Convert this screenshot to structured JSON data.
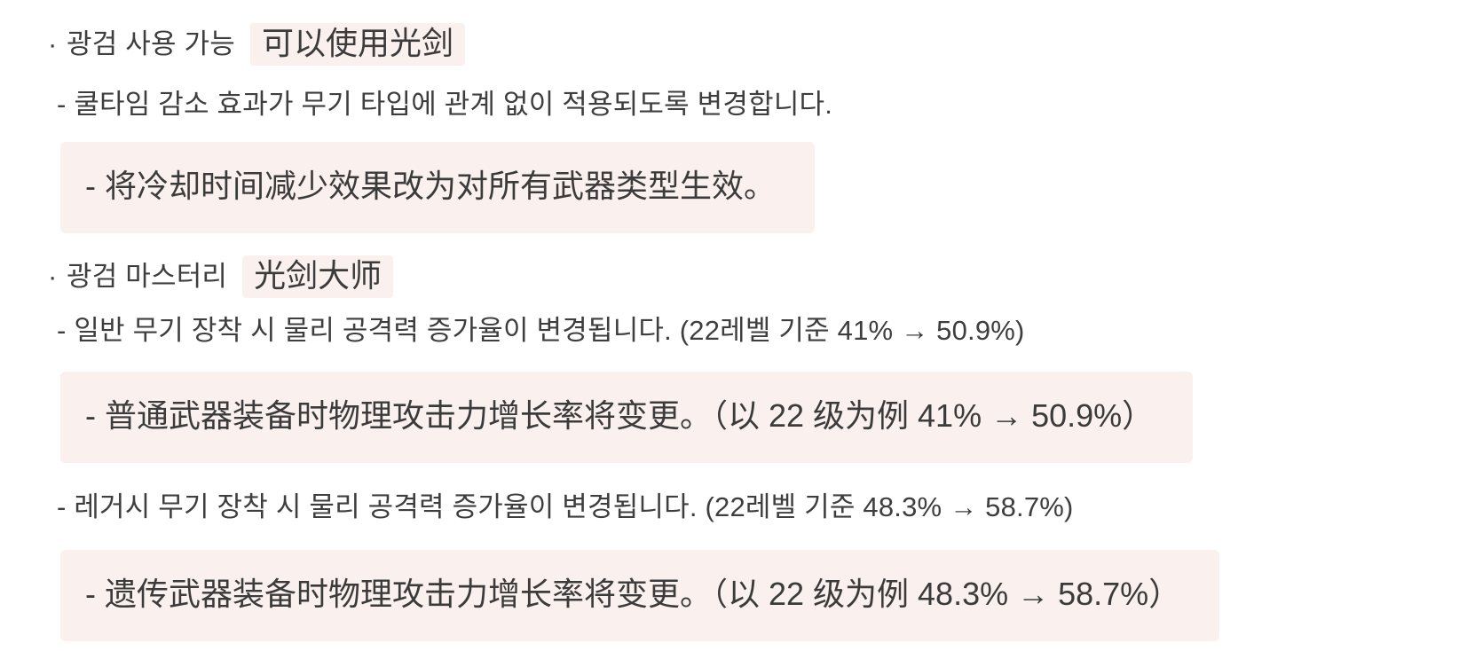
{
  "page": {
    "background_color": "#ffffff",
    "text_color": "#3e3e3e",
    "highlight_bg_color": "#faf0ee"
  },
  "content": {
    "items": [
      {
        "kind": "bullet",
        "marker": "·",
        "text_ko": "광검 사용 가능",
        "text_zh": "可以使用光剑"
      },
      {
        "kind": "sub",
        "text": "- 쿨타임 감소 효과가 무기 타입에 관계 없이 적용되도록 변경합니다."
      },
      {
        "kind": "callout",
        "text": "- 将冷却时间减少效果改为对所有武器类型生效。"
      },
      {
        "kind": "bullet",
        "marker": "·",
        "text_ko": "광검 마스터리",
        "text_zh": "光剑大师"
      },
      {
        "kind": "sub",
        "text": "- 일반 무기 장착 시 물리 공격력 증가율이 변경됩니다. (22레벨 기준 41% → 50.9%)"
      },
      {
        "kind": "callout",
        "text": "- 普通武器装备时物理攻击力增长率将变更。（以 22 级为例 41% → 50.9%）"
      },
      {
        "kind": "sub",
        "text": "- 레거시 무기 장착 시 물리 공격력 증가율이 변경됩니다. (22레벨 기준 48.3% → 58.7%)"
      },
      {
        "kind": "callout",
        "text": "- 遗传武器装备时物理攻击力增长率将变更。（以 22 级为例 48.3% → 58.7%）"
      }
    ]
  }
}
